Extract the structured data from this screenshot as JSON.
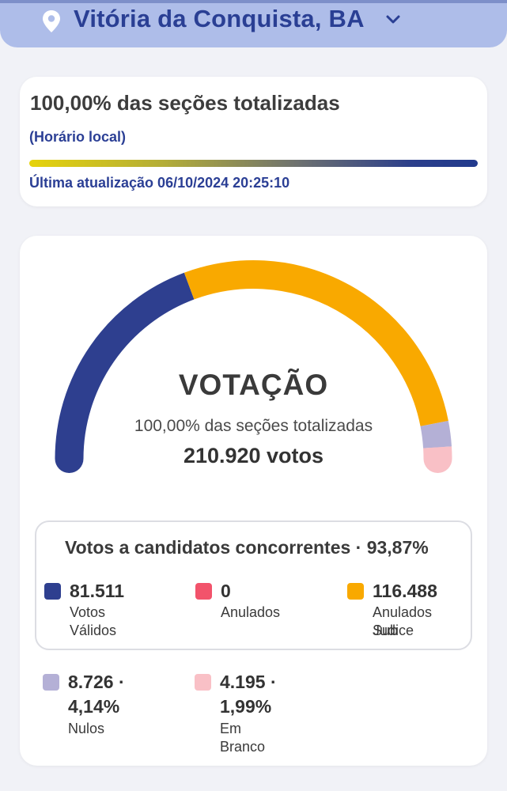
{
  "header": {
    "location": "Vitória da Conquista, BA",
    "icons": [
      "location-pin-icon",
      "chevron-down-icon"
    ]
  },
  "status_card": {
    "title": "100,00% das seções totalizadas",
    "local_time_label": "(Horário local)",
    "progress_fraction": 1.0,
    "last_update": "Última atualização 06/10/2024 20:25:10"
  },
  "vote_card": {
    "title": "VOTAÇÃO",
    "sections": "100,00% das seções totalizadas",
    "total_votes": "210.920 votos",
    "gauge_values": [
      {
        "name": "Votos Válidos",
        "value": 81511,
        "color": "#2e3f8f"
      },
      {
        "name": "Anulados",
        "value": 0,
        "color": "#f2536b"
      },
      {
        "name": "Anulados Sub Judice",
        "value": 116488,
        "color": "#f9a900"
      },
      {
        "name": "Nulos",
        "value": 8726,
        "color": "#b4b0d6"
      },
      {
        "name": "Em Branco",
        "value": 4195,
        "color": "#f9c0c6"
      }
    ],
    "candidates_header": "Votos a candidatos concorrentes · 93,87%",
    "legend": {
      "valid": {
        "value": "81.511",
        "label": "Votos Válidos",
        "color": "#2e3f8f"
      },
      "annulled": {
        "value": "0",
        "label": "Anulados",
        "color": "#f2536b"
      },
      "sub_judice": {
        "value": "116.488",
        "label_line1": "Anulados Sub",
        "label_line2": "Judice",
        "color": "#f9a900"
      },
      "null": {
        "value_line1": "8.726 ·",
        "value_line2": "4,14%",
        "label": "Nulos",
        "color": "#b4b0d6"
      },
      "blank": {
        "value_line1": "4.195 ·",
        "value_line2": "1,99%",
        "label": "Em Branco",
        "color": "#f9c0c6"
      }
    }
  }
}
